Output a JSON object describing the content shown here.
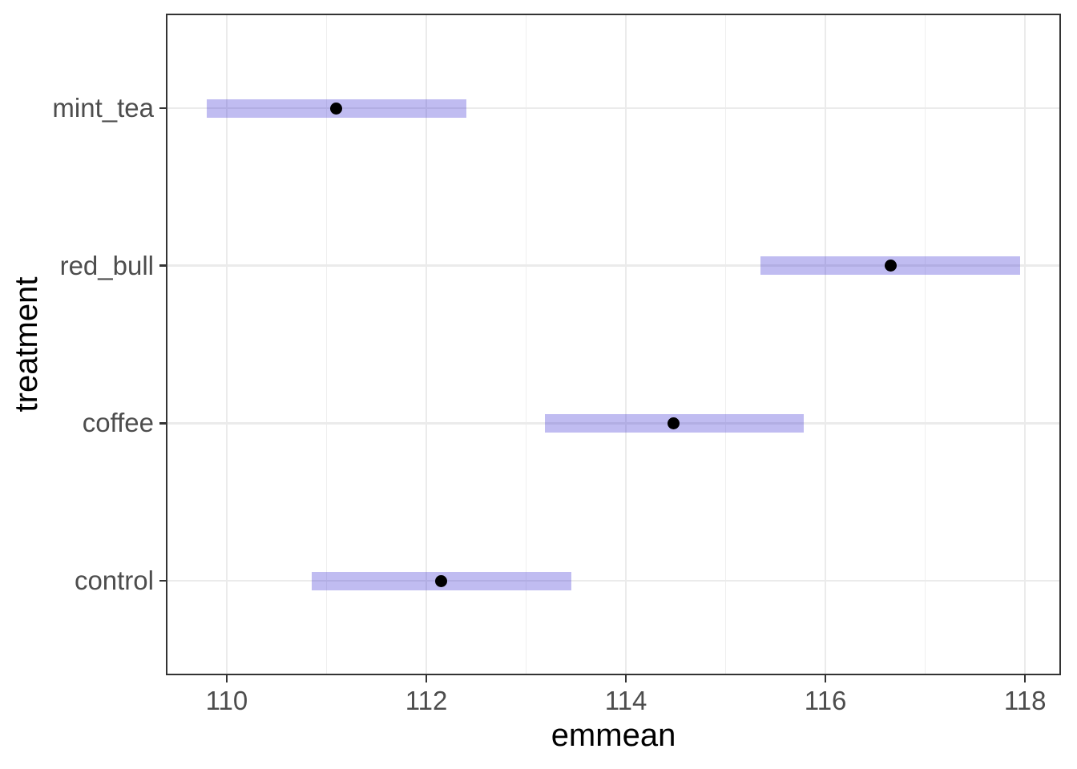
{
  "chart_data": {
    "type": "pointrange",
    "orientation": "horizontal",
    "title": "",
    "xlabel": "emmean",
    "ylabel": "treatment",
    "legend": "none",
    "grid": "on",
    "categories_bottom_to_top": [
      "control",
      "coffee",
      "red_bull",
      "mint_tea"
    ],
    "rows": [
      {
        "label": "mint_tea",
        "emmean": 111.1,
        "lower": 109.8,
        "upper": 112.4
      },
      {
        "label": "red_bull",
        "emmean": 116.65,
        "lower": 115.35,
        "upper": 117.95
      },
      {
        "label": "coffee",
        "emmean": 114.48,
        "lower": 113.19,
        "upper": 115.78
      },
      {
        "label": "control",
        "emmean": 112.15,
        "lower": 110.85,
        "upper": 113.45
      }
    ],
    "x_major_ticks": [
      110,
      112,
      114,
      116,
      118
    ],
    "x_minor_ticks": [
      111,
      113,
      115,
      117
    ],
    "xlim": [
      109.39,
      118.36
    ],
    "colors": {
      "ci_bar": "rgba(48,33,210,0.30)",
      "point": "#000000",
      "grid_major": "#ebebeb",
      "grid_minor": "#efefef",
      "panel_border": "#333333",
      "tick_mark": "#333333",
      "tick_label": "#4d4d4d",
      "axis_title": "#000000",
      "background": "#ffffff"
    }
  }
}
